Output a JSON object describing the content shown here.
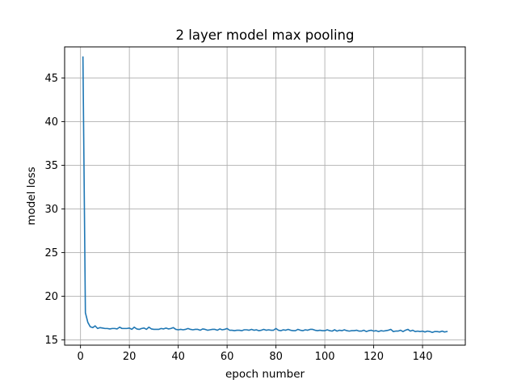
{
  "chart_data": {
    "type": "line",
    "title": "2 layer model max pooling",
    "xlabel": "epoch number",
    "ylabel": "model loss",
    "xlim": [
      -6.5,
      157.5
    ],
    "ylim": [
      14.39,
      48.56
    ],
    "xticks": [
      0,
      20,
      40,
      60,
      80,
      100,
      120,
      140
    ],
    "yticks": [
      15,
      20,
      25,
      30,
      35,
      40,
      45
    ],
    "grid": true,
    "colors": {
      "line": "#1f77b4",
      "grid": "#b0b0b0"
    },
    "series": [
      {
        "x": [
          1,
          2,
          3,
          4,
          5,
          6,
          7,
          8,
          9,
          10,
          11,
          12,
          13,
          14,
          15,
          16,
          17,
          18,
          19,
          20,
          21,
          22,
          23,
          24,
          25,
          26,
          27,
          28,
          29,
          30,
          31,
          32,
          33,
          34,
          35,
          36,
          37,
          38,
          39,
          40,
          41,
          42,
          43,
          44,
          45,
          46,
          47,
          48,
          49,
          50,
          51,
          52,
          53,
          54,
          55,
          56,
          57,
          58,
          59,
          60,
          61,
          62,
          63,
          64,
          65,
          66,
          67,
          68,
          69,
          70,
          71,
          72,
          73,
          74,
          75,
          76,
          77,
          78,
          79,
          80,
          81,
          82,
          83,
          84,
          85,
          86,
          87,
          88,
          89,
          90,
          91,
          92,
          93,
          94,
          95,
          96,
          97,
          98,
          99,
          100,
          101,
          102,
          103,
          104,
          105,
          106,
          107,
          108,
          109,
          110,
          111,
          112,
          113,
          114,
          115,
          116,
          117,
          118,
          119,
          120,
          121,
          122,
          123,
          124,
          125,
          126,
          127,
          128,
          129,
          130,
          131,
          132,
          133,
          134,
          135,
          136,
          137,
          138,
          139,
          140,
          141,
          142,
          143,
          144,
          145,
          146,
          147,
          148,
          149,
          150
        ],
        "values": [
          47.4,
          18.1,
          17.0,
          16.5,
          16.4,
          16.6,
          16.3,
          16.4,
          16.35,
          16.3,
          16.3,
          16.25,
          16.3,
          16.3,
          16.25,
          16.45,
          16.3,
          16.3,
          16.3,
          16.35,
          16.2,
          16.45,
          16.25,
          16.2,
          16.3,
          16.35,
          16.2,
          16.45,
          16.25,
          16.2,
          16.2,
          16.2,
          16.3,
          16.25,
          16.35,
          16.25,
          16.3,
          16.4,
          16.2,
          16.15,
          16.2,
          16.15,
          16.2,
          16.3,
          16.2,
          16.15,
          16.2,
          16.2,
          16.1,
          16.25,
          16.2,
          16.1,
          16.15,
          16.2,
          16.2,
          16.1,
          16.25,
          16.15,
          16.2,
          16.3,
          16.1,
          16.1,
          16.05,
          16.1,
          16.1,
          16.05,
          16.15,
          16.15,
          16.1,
          16.2,
          16.1,
          16.15,
          16.05,
          16.1,
          16.2,
          16.1,
          16.15,
          16.1,
          16.1,
          16.3,
          16.1,
          16.05,
          16.15,
          16.1,
          16.2,
          16.1,
          16.05,
          16.05,
          16.2,
          16.1,
          16.05,
          16.15,
          16.1,
          16.2,
          16.2,
          16.1,
          16.05,
          16.1,
          16.05,
          16.05,
          16.15,
          16.05,
          16.0,
          16.15,
          16.0,
          16.1,
          16.05,
          16.15,
          16.05,
          16.0,
          16.05,
          16.05,
          16.1,
          16.0,
          16.0,
          16.1,
          15.95,
          16.05,
          16.1,
          16.0,
          16.05,
          15.95,
          16.05,
          16.0,
          16.05,
          16.1,
          16.2,
          15.95,
          16.0,
          16.0,
          16.1,
          15.95,
          16.1,
          16.2,
          16.0,
          16.1,
          15.95,
          16.0,
          15.95,
          16.0,
          15.9,
          16.0,
          15.95,
          15.85,
          15.95,
          15.95,
          15.9,
          16.0,
          15.9,
          15.95
        ]
      }
    ]
  }
}
